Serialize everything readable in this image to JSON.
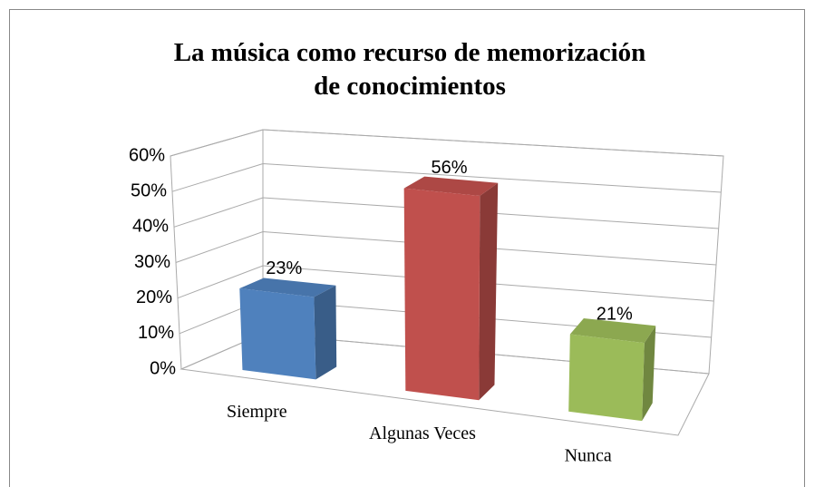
{
  "chart_data": {
    "type": "bar3d",
    "title": "La música como recurso de memorización de conocimientos",
    "categories": [
      "Siempre",
      "Algunas Veces",
      "Nunca"
    ],
    "values": [
      23,
      56,
      21
    ],
    "value_labels": [
      "23%",
      "56%",
      "21%"
    ],
    "colors": [
      "#4f81bd",
      "#c0504d",
      "#9bbb59"
    ],
    "ylim": [
      0,
      60
    ],
    "yticks": [
      {
        "value": 0,
        "label": "0%"
      },
      {
        "value": 10,
        "label": "10%"
      },
      {
        "value": 20,
        "label": "20%"
      },
      {
        "value": 30,
        "label": "30%"
      },
      {
        "value": 40,
        "label": "40%"
      },
      {
        "value": 50,
        "label": "50%"
      },
      {
        "value": 60,
        "label": "60%"
      }
    ],
    "grid": true
  }
}
